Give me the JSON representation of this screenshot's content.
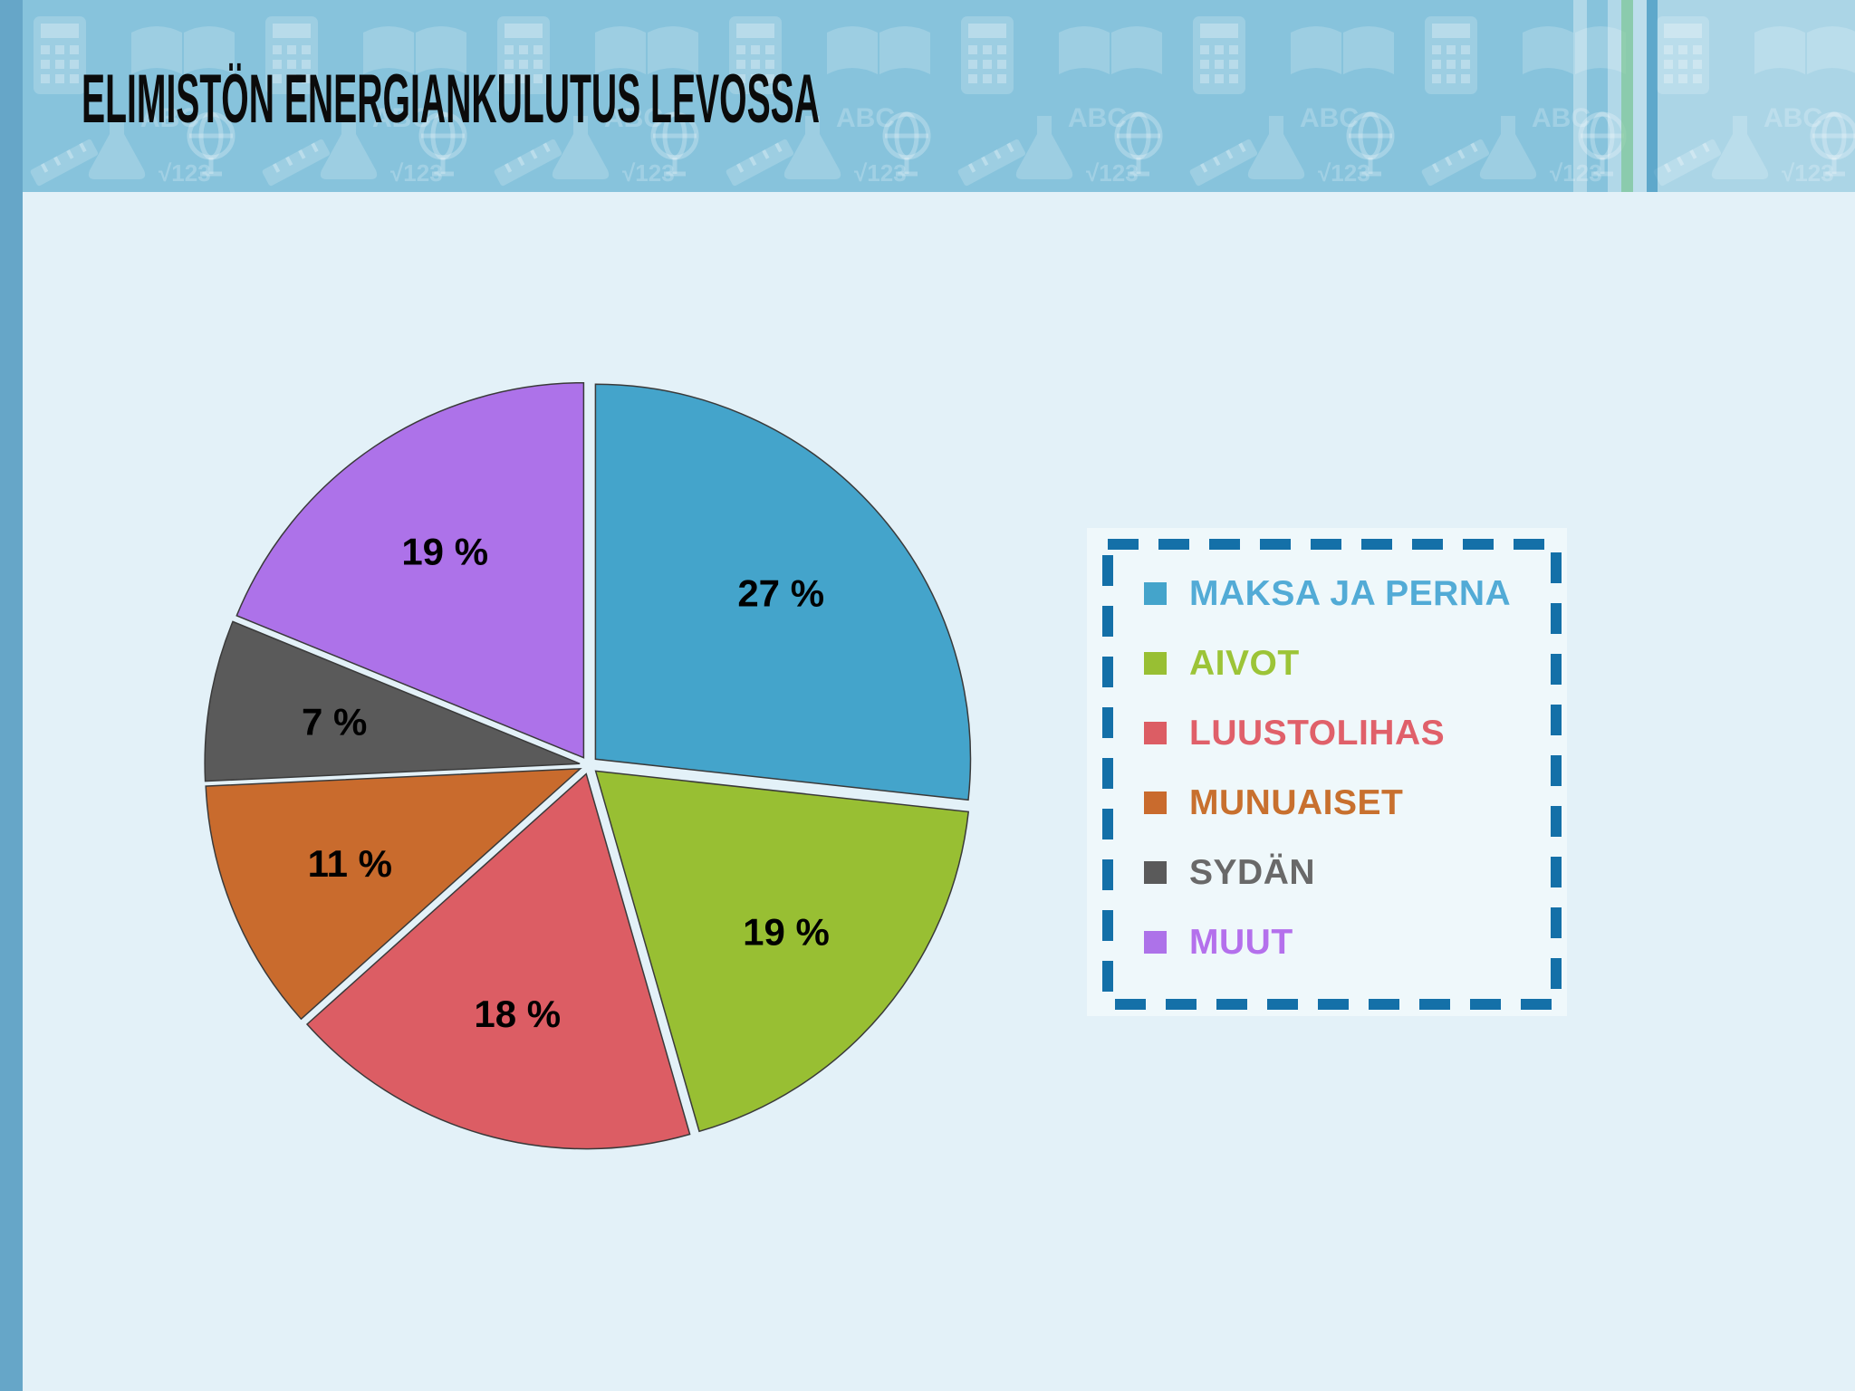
{
  "slide": {
    "title": "ELIMISTÖN ENERGIANKULUTUS LEVOSSA"
  },
  "theme": {
    "header_bg": "#87C3DC",
    "left_strip": "#66A6C8",
    "background": "#E3F1F8",
    "legend_panel_bg": "#EFF8FB",
    "legend_border": "#1470A8",
    "title_color": "#0B0B0B",
    "slice_outline": "#3A3A3A",
    "label_color": "#000000"
  },
  "chart_data": {
    "type": "pie",
    "title": "ELIMISTÖN ENERGIANKULUTUS LEVOSSA",
    "categories": [
      "MAKSA JA PERNA",
      "AIVOT",
      "LUUSTOLIHAS",
      "MUNUAISET",
      "SYDÄN",
      "MUUT"
    ],
    "values": [
      27,
      19,
      18,
      11,
      7,
      19
    ],
    "labels": [
      "27 %",
      "19 %",
      "18 %",
      "11 %",
      "7 %",
      "19 %"
    ],
    "unit": "%",
    "colors": [
      "#44A4CB",
      "#98BF33",
      "#DC5D64",
      "#C96B2D",
      "#5A5A5A",
      "#AD72E9"
    ],
    "legend_text_colors": [
      "#52ABD6",
      "#9CC437",
      "#E0606A",
      "#C8702E",
      "#696969",
      "#B470EC"
    ],
    "legend_position": "right",
    "start_angle_deg": 0,
    "direction": "clockwise",
    "donut": false,
    "exploded": true,
    "grid": false
  }
}
